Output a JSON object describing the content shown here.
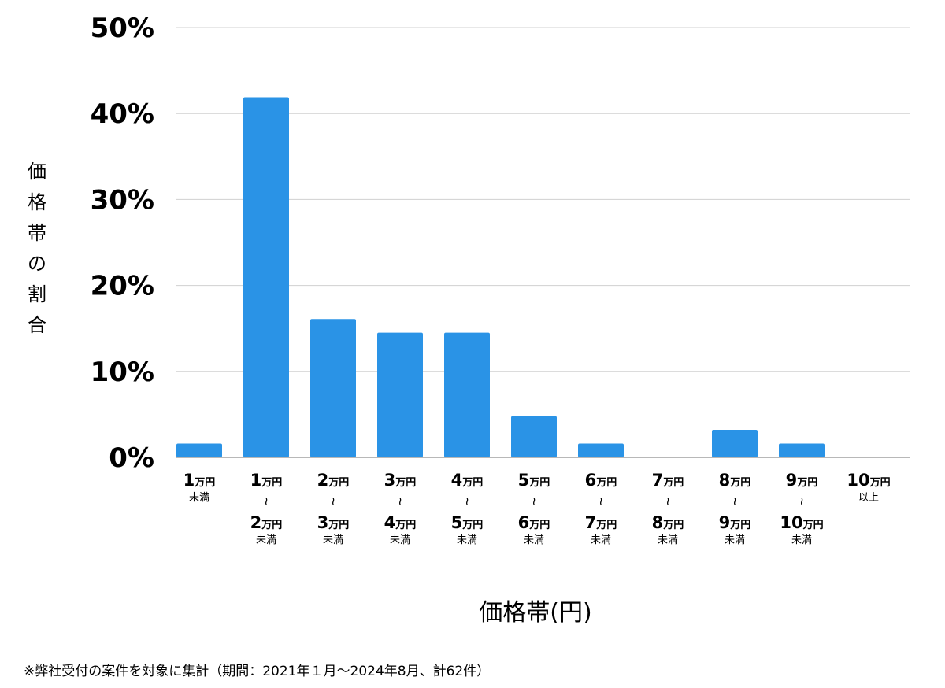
{
  "chart_data": {
    "type": "bar",
    "categories": [
      {
        "top": "1",
        "top_unit": "万円",
        "bottom": "",
        "bottom_unit": "",
        "suffix": "未満",
        "range": false
      },
      {
        "top": "1",
        "top_unit": "万円",
        "bottom": "2",
        "bottom_unit": "万円",
        "suffix": "未満",
        "range": true
      },
      {
        "top": "2",
        "top_unit": "万円",
        "bottom": "3",
        "bottom_unit": "万円",
        "suffix": "未満",
        "range": true
      },
      {
        "top": "3",
        "top_unit": "万円",
        "bottom": "4",
        "bottom_unit": "万円",
        "suffix": "未満",
        "range": true
      },
      {
        "top": "4",
        "top_unit": "万円",
        "bottom": "5",
        "bottom_unit": "万円",
        "suffix": "未満",
        "range": true
      },
      {
        "top": "5",
        "top_unit": "万円",
        "bottom": "6",
        "bottom_unit": "万円",
        "suffix": "未満",
        "range": true
      },
      {
        "top": "6",
        "top_unit": "万円",
        "bottom": "7",
        "bottom_unit": "万円",
        "suffix": "未満",
        "range": true
      },
      {
        "top": "7",
        "top_unit": "万円",
        "bottom": "8",
        "bottom_unit": "万円",
        "suffix": "未満",
        "range": true
      },
      {
        "top": "8",
        "top_unit": "万円",
        "bottom": "9",
        "bottom_unit": "万円",
        "suffix": "未満",
        "range": true
      },
      {
        "top": "9",
        "top_unit": "万円",
        "bottom": "10",
        "bottom_unit": "万円",
        "suffix": "未満",
        "range": true
      },
      {
        "top": "10",
        "top_unit": "万円",
        "bottom": "",
        "bottom_unit": "",
        "suffix": "以上",
        "range": false
      }
    ],
    "tilde": "~",
    "values": [
      1.6,
      41.9,
      16.1,
      14.5,
      14.5,
      4.8,
      1.6,
      0,
      3.2,
      1.6,
      0
    ],
    "yticks": [
      "0%",
      "10%",
      "20%",
      "30%",
      "40%",
      "50%"
    ],
    "ylim": [
      0,
      50
    ],
    "ylabel": "価格帯の割合",
    "xlabel": "価格帯(円)",
    "grid": true,
    "bar_color": "#2a93e6",
    "grid_color": "#d0d0d0",
    "axis_color": "#a0a0a0"
  },
  "footnote": "※弊社受付の案件を対象に集計（期間：2021年１月～2024年8月、計62件）"
}
